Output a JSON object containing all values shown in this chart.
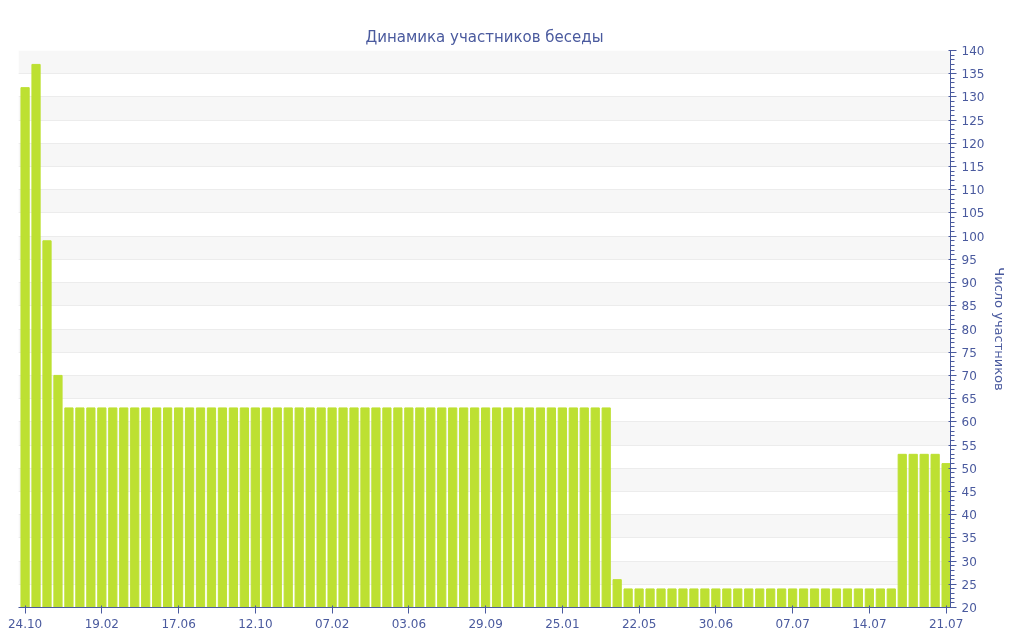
{
  "chart_data": {
    "type": "bar",
    "title": "Динамика участников беседы",
    "ylabel": "Число участников",
    "categories": [
      "24.10",
      null,
      null,
      null,
      null,
      null,
      null,
      "19.02",
      null,
      null,
      null,
      null,
      null,
      null,
      "17.06",
      null,
      null,
      null,
      null,
      null,
      null,
      "12.10",
      null,
      null,
      null,
      null,
      null,
      null,
      "07.02",
      null,
      null,
      null,
      null,
      null,
      null,
      "03.06",
      null,
      null,
      null,
      null,
      null,
      null,
      "29.09",
      null,
      null,
      null,
      null,
      null,
      null,
      "25.01",
      null,
      null,
      null,
      null,
      null,
      null,
      "22.05",
      null,
      null,
      null,
      null,
      null,
      null,
      "30.06",
      null,
      null,
      null,
      null,
      null,
      null,
      "07.07",
      null,
      null,
      null,
      null,
      null,
      null,
      "14.07",
      null,
      null,
      null,
      null,
      null,
      null,
      "21.07"
    ],
    "values": [
      132,
      137,
      99,
      70,
      63,
      63,
      63,
      63,
      63,
      63,
      63,
      63,
      63,
      63,
      63,
      63,
      63,
      63,
      63,
      63,
      63,
      63,
      63,
      63,
      63,
      63,
      63,
      63,
      63,
      63,
      63,
      63,
      63,
      63,
      63,
      63,
      63,
      63,
      63,
      63,
      63,
      63,
      63,
      63,
      63,
      63,
      63,
      63,
      63,
      63,
      63,
      63,
      63,
      63,
      26,
      24,
      24,
      24,
      24,
      24,
      24,
      24,
      24,
      24,
      24,
      24,
      24,
      24,
      24,
      24,
      24,
      24,
      24,
      24,
      24,
      24,
      24,
      24,
      24,
      24,
      53,
      53,
      53,
      53,
      51
    ],
    "color": "#bde032",
    "ylim": [
      20,
      140
    ],
    "yticks": [
      20,
      25,
      30,
      35,
      40,
      45,
      50,
      55,
      60,
      65,
      70,
      75,
      80,
      85,
      90,
      95,
      100,
      105,
      110,
      115,
      120,
      125,
      130,
      135,
      140
    ],
    "grid": "y"
  }
}
